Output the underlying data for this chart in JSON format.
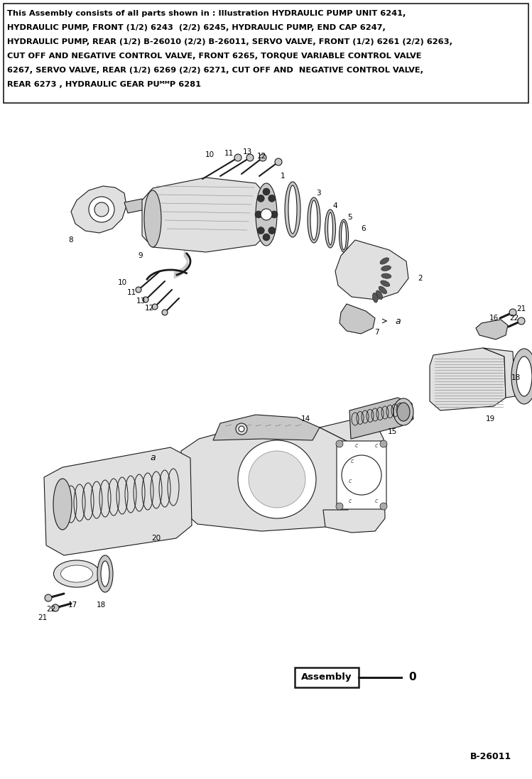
{
  "bg_color": "#ffffff",
  "header_text": "This Assembly consists of all parts shown in : Illustration HYDRAULIC PUMP UNIT 6241,\nHYDRAULIC PUMP, FRONT (1/2) 6243  (2/2) 6245, HYDRAULIC PUMP, END CAP 6247,\nHYDRAULIC PUMP, REAR (1/2) B-26010 (2/2) B-26011, SERVO VALVE, FRONT (1/2) 6261 (2/2) 6263,\nCUT OFF AND NEGATIVE CONTROL VALVE, FRONT 6265, TORQUE VARIABLE CONTROL VALVE\n6267, SERVO VALVE, REAR (1/2) 6269 (2/2) 6271, CUT OFF AND  NEGATIVE CONTROL VALVE,\nREAR 6273 , HYDRAULIC GEAR PUᴹᴹP 6281",
  "header_fontsize": 8.2,
  "assembly_text": "Assembly",
  "assembly_label": "0",
  "footer_text": "B-26011",
  "footer_fontsize": 9,
  "fig_width": 7.49,
  "fig_height": 10.97,
  "dpi": 100
}
